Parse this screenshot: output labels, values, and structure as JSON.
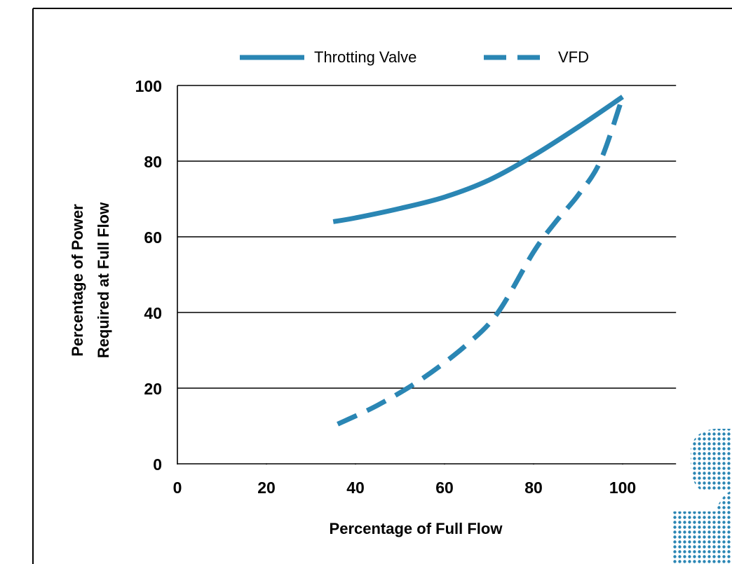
{
  "chart_data": {
    "type": "line",
    "series": [
      {
        "name": "Throtting Valve",
        "color": "#2a86b4",
        "style": "solid",
        "x": [
          35,
          40,
          50,
          60,
          70,
          80,
          90,
          100
        ],
        "values": [
          64,
          65,
          67.5,
          70.5,
          75,
          81.5,
          89,
          97
        ]
      },
      {
        "name": "VFD",
        "color": "#2a86b4",
        "style": "dashed",
        "x": [
          36,
          45,
          55,
          65,
          72,
          80,
          85,
          90,
          95,
          100
        ],
        "values": [
          10.5,
          15.5,
          22.5,
          31.5,
          40,
          56,
          64,
          71,
          80,
          97
        ]
      }
    ],
    "x_label": "Percentage of Full Flow",
    "y_label": [
      "Percentage of Power",
      "Required at Full Flow"
    ],
    "xlim": [
      0,
      112
    ],
    "ylim": [
      0,
      100
    ],
    "xticks": [
      0,
      20,
      40,
      60,
      80,
      100
    ],
    "yticks": [
      0,
      20,
      40,
      60,
      80,
      100
    ],
    "grid": true,
    "legend": "top"
  }
}
